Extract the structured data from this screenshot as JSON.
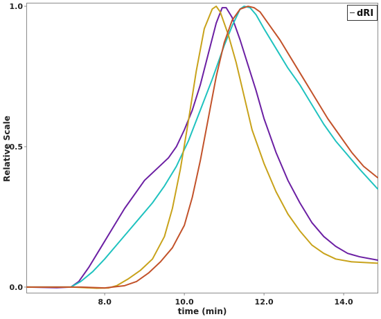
{
  "chart_data": {
    "type": "line",
    "xlabel": "time (min)",
    "ylabel": "Relative Scale",
    "xlim": [
      6.05,
      14.85
    ],
    "ylim": [
      -0.02,
      1.01
    ],
    "xticks": [
      8.0,
      10.0,
      12.0,
      14.0
    ],
    "xtick_labels": [
      "8.0",
      "10.0",
      "12.0",
      "14.0"
    ],
    "yticks": [
      0.0,
      0.5,
      1.0
    ],
    "ytick_labels": [
      "0.0",
      "0.5",
      "1.0"
    ],
    "legend": {
      "label": "dRI",
      "position": "top-right"
    },
    "series": [
      {
        "color": "#6B1FA3",
        "points": [
          [
            6.05,
            0.0
          ],
          [
            6.8,
            -0.002
          ],
          [
            7.15,
            0.0
          ],
          [
            7.35,
            0.02
          ],
          [
            7.6,
            0.07
          ],
          [
            7.9,
            0.14
          ],
          [
            8.2,
            0.21
          ],
          [
            8.5,
            0.28
          ],
          [
            8.8,
            0.34
          ],
          [
            9.0,
            0.38
          ],
          [
            9.3,
            0.42
          ],
          [
            9.6,
            0.46
          ],
          [
            9.8,
            0.5
          ],
          [
            10.0,
            0.56
          ],
          [
            10.2,
            0.63
          ],
          [
            10.4,
            0.72
          ],
          [
            10.6,
            0.83
          ],
          [
            10.8,
            0.94
          ],
          [
            10.95,
            0.995
          ],
          [
            11.05,
            0.995
          ],
          [
            11.2,
            0.96
          ],
          [
            11.4,
            0.88
          ],
          [
            11.6,
            0.79
          ],
          [
            11.8,
            0.7
          ],
          [
            12.0,
            0.6
          ],
          [
            12.3,
            0.48
          ],
          [
            12.6,
            0.38
          ],
          [
            12.9,
            0.3
          ],
          [
            13.2,
            0.23
          ],
          [
            13.5,
            0.18
          ],
          [
            13.8,
            0.145
          ],
          [
            14.1,
            0.12
          ],
          [
            14.4,
            0.108
          ],
          [
            14.85,
            0.096
          ]
        ]
      },
      {
        "color": "#1FC2BF",
        "points": [
          [
            6.05,
            0.0
          ],
          [
            6.8,
            0.0
          ],
          [
            7.15,
            0.0
          ],
          [
            7.4,
            0.02
          ],
          [
            7.7,
            0.055
          ],
          [
            8.0,
            0.1
          ],
          [
            8.3,
            0.15
          ],
          [
            8.6,
            0.2
          ],
          [
            8.9,
            0.25
          ],
          [
            9.2,
            0.3
          ],
          [
            9.5,
            0.36
          ],
          [
            9.8,
            0.43
          ],
          [
            10.1,
            0.52
          ],
          [
            10.4,
            0.63
          ],
          [
            10.7,
            0.74
          ],
          [
            11.0,
            0.86
          ],
          [
            11.2,
            0.93
          ],
          [
            11.4,
            0.99
          ],
          [
            11.5,
            1.0
          ],
          [
            11.65,
            0.995
          ],
          [
            11.8,
            0.97
          ],
          [
            12.0,
            0.92
          ],
          [
            12.3,
            0.85
          ],
          [
            12.6,
            0.78
          ],
          [
            12.9,
            0.72
          ],
          [
            13.2,
            0.65
          ],
          [
            13.5,
            0.58
          ],
          [
            13.8,
            0.52
          ],
          [
            14.1,
            0.47
          ],
          [
            14.4,
            0.42
          ],
          [
            14.85,
            0.35
          ]
        ]
      },
      {
        "color": "#C8A21A",
        "points": [
          [
            6.05,
            0.0
          ],
          [
            7.2,
            0.0
          ],
          [
            7.8,
            -0.004
          ],
          [
            8.1,
            -0.003
          ],
          [
            8.3,
            0.005
          ],
          [
            8.6,
            0.03
          ],
          [
            8.9,
            0.06
          ],
          [
            9.2,
            0.1
          ],
          [
            9.5,
            0.18
          ],
          [
            9.7,
            0.28
          ],
          [
            9.9,
            0.42
          ],
          [
            10.1,
            0.59
          ],
          [
            10.3,
            0.77
          ],
          [
            10.5,
            0.92
          ],
          [
            10.7,
            0.99
          ],
          [
            10.8,
            1.0
          ],
          [
            10.9,
            0.98
          ],
          [
            11.1,
            0.9
          ],
          [
            11.3,
            0.8
          ],
          [
            11.5,
            0.68
          ],
          [
            11.7,
            0.56
          ],
          [
            12.0,
            0.44
          ],
          [
            12.3,
            0.34
          ],
          [
            12.6,
            0.26
          ],
          [
            12.9,
            0.2
          ],
          [
            13.2,
            0.15
          ],
          [
            13.5,
            0.12
          ],
          [
            13.8,
            0.1
          ],
          [
            14.2,
            0.09
          ],
          [
            14.85,
            0.085
          ]
        ]
      },
      {
        "color": "#C2522A",
        "points": [
          [
            6.05,
            0.0
          ],
          [
            7.4,
            0.0
          ],
          [
            8.0,
            -0.003
          ],
          [
            8.5,
            0.005
          ],
          [
            8.8,
            0.02
          ],
          [
            9.1,
            0.05
          ],
          [
            9.4,
            0.09
          ],
          [
            9.7,
            0.14
          ],
          [
            10.0,
            0.22
          ],
          [
            10.2,
            0.32
          ],
          [
            10.4,
            0.45
          ],
          [
            10.6,
            0.6
          ],
          [
            10.8,
            0.75
          ],
          [
            11.0,
            0.87
          ],
          [
            11.2,
            0.95
          ],
          [
            11.4,
            0.99
          ],
          [
            11.6,
            1.0
          ],
          [
            11.75,
            0.995
          ],
          [
            11.9,
            0.98
          ],
          [
            12.1,
            0.94
          ],
          [
            12.4,
            0.88
          ],
          [
            12.7,
            0.81
          ],
          [
            13.0,
            0.74
          ],
          [
            13.3,
            0.67
          ],
          [
            13.6,
            0.6
          ],
          [
            13.9,
            0.54
          ],
          [
            14.2,
            0.48
          ],
          [
            14.5,
            0.43
          ],
          [
            14.85,
            0.39
          ]
        ]
      }
    ]
  }
}
